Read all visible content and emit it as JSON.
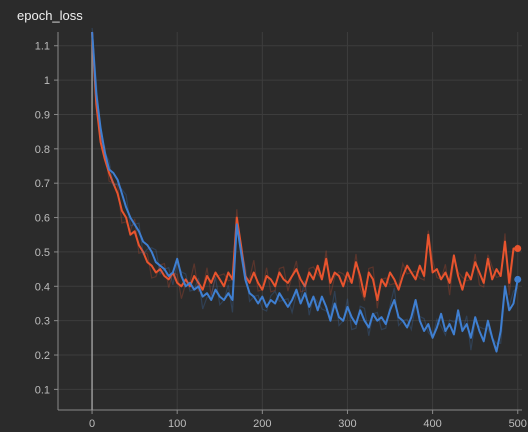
{
  "chart_data": {
    "type": "line",
    "title": "epoch_loss",
    "xlabel": "",
    "ylabel": "",
    "xlim": [
      -40,
      505
    ],
    "ylim": [
      0.04,
      1.14
    ],
    "x_ticks": [
      0,
      100,
      200,
      300,
      400,
      500
    ],
    "y_ticks": [
      0.1,
      0.2,
      0.3,
      0.4,
      0.5,
      0.6,
      0.7,
      0.8,
      0.9,
      1,
      1.1
    ],
    "grid": true,
    "series": [
      {
        "color": "#e8542e",
        "points": [
          [
            0,
            1.14
          ],
          [
            5,
            0.93
          ],
          [
            10,
            0.82
          ],
          [
            15,
            0.77
          ],
          [
            20,
            0.73
          ],
          [
            25,
            0.7
          ],
          [
            30,
            0.67
          ],
          [
            35,
            0.62
          ],
          [
            40,
            0.6
          ],
          [
            45,
            0.55
          ],
          [
            50,
            0.56
          ],
          [
            55,
            0.52
          ],
          [
            60,
            0.5
          ],
          [
            65,
            0.47
          ],
          [
            70,
            0.46
          ],
          [
            75,
            0.44
          ],
          [
            80,
            0.45
          ],
          [
            85,
            0.43
          ],
          [
            90,
            0.42
          ],
          [
            95,
            0.44
          ],
          [
            100,
            0.41
          ],
          [
            105,
            0.4
          ],
          [
            110,
            0.42
          ],
          [
            115,
            0.4
          ],
          [
            120,
            0.43
          ],
          [
            125,
            0.41
          ],
          [
            130,
            0.39
          ],
          [
            135,
            0.43
          ],
          [
            140,
            0.41
          ],
          [
            145,
            0.44
          ],
          [
            150,
            0.42
          ],
          [
            155,
            0.4
          ],
          [
            160,
            0.44
          ],
          [
            165,
            0.42
          ],
          [
            170,
            0.6
          ],
          [
            175,
            0.52
          ],
          [
            180,
            0.43
          ],
          [
            185,
            0.41
          ],
          [
            190,
            0.44
          ],
          [
            195,
            0.41
          ],
          [
            200,
            0.39
          ],
          [
            205,
            0.43
          ],
          [
            210,
            0.42
          ],
          [
            215,
            0.4
          ],
          [
            220,
            0.44
          ],
          [
            225,
            0.42
          ],
          [
            230,
            0.41
          ],
          [
            235,
            0.43
          ],
          [
            240,
            0.45
          ],
          [
            245,
            0.42
          ],
          [
            250,
            0.4
          ],
          [
            255,
            0.44
          ],
          [
            260,
            0.42
          ],
          [
            265,
            0.46
          ],
          [
            270,
            0.42
          ],
          [
            275,
            0.48
          ],
          [
            280,
            0.41
          ],
          [
            285,
            0.44
          ],
          [
            290,
            0.43
          ],
          [
            295,
            0.4
          ],
          [
            300,
            0.44
          ],
          [
            305,
            0.41
          ],
          [
            310,
            0.47
          ],
          [
            315,
            0.43
          ],
          [
            320,
            0.37
          ],
          [
            325,
            0.44
          ],
          [
            330,
            0.42
          ],
          [
            335,
            0.36
          ],
          [
            340,
            0.42
          ],
          [
            345,
            0.4
          ],
          [
            350,
            0.44
          ],
          [
            355,
            0.42
          ],
          [
            360,
            0.39
          ],
          [
            365,
            0.43
          ],
          [
            370,
            0.46
          ],
          [
            375,
            0.44
          ],
          [
            380,
            0.42
          ],
          [
            385,
            0.46
          ],
          [
            390,
            0.43
          ],
          [
            395,
            0.55
          ],
          [
            400,
            0.44
          ],
          [
            405,
            0.45
          ],
          [
            410,
            0.42
          ],
          [
            415,
            0.44
          ],
          [
            420,
            0.41
          ],
          [
            425,
            0.49
          ],
          [
            430,
            0.43
          ],
          [
            435,
            0.39
          ],
          [
            440,
            0.44
          ],
          [
            445,
            0.42
          ],
          [
            450,
            0.47
          ],
          [
            455,
            0.44
          ],
          [
            460,
            0.41
          ],
          [
            465,
            0.48
          ],
          [
            470,
            0.42
          ],
          [
            475,
            0.45
          ],
          [
            480,
            0.43
          ],
          [
            485,
            0.53
          ],
          [
            490,
            0.41
          ],
          [
            495,
            0.51
          ],
          [
            500,
            0.51
          ]
        ]
      },
      {
        "color": "#3f7fd1",
        "points": [
          [
            0,
            1.14
          ],
          [
            5,
            0.96
          ],
          [
            10,
            0.86
          ],
          [
            15,
            0.79
          ],
          [
            20,
            0.74
          ],
          [
            25,
            0.73
          ],
          [
            30,
            0.71
          ],
          [
            35,
            0.67
          ],
          [
            40,
            0.63
          ],
          [
            45,
            0.6
          ],
          [
            50,
            0.58
          ],
          [
            55,
            0.56
          ],
          [
            60,
            0.53
          ],
          [
            65,
            0.52
          ],
          [
            70,
            0.5
          ],
          [
            75,
            0.47
          ],
          [
            80,
            0.46
          ],
          [
            85,
            0.45
          ],
          [
            90,
            0.43
          ],
          [
            95,
            0.44
          ],
          [
            100,
            0.48
          ],
          [
            105,
            0.43
          ],
          [
            110,
            0.4
          ],
          [
            115,
            0.41
          ],
          [
            120,
            0.39
          ],
          [
            125,
            0.4
          ],
          [
            130,
            0.37
          ],
          [
            135,
            0.38
          ],
          [
            140,
            0.36
          ],
          [
            145,
            0.39
          ],
          [
            150,
            0.37
          ],
          [
            155,
            0.36
          ],
          [
            160,
            0.38
          ],
          [
            165,
            0.36
          ],
          [
            170,
            0.58
          ],
          [
            175,
            0.5
          ],
          [
            180,
            0.42
          ],
          [
            185,
            0.38
          ],
          [
            190,
            0.37
          ],
          [
            195,
            0.35
          ],
          [
            200,
            0.37
          ],
          [
            205,
            0.34
          ],
          [
            210,
            0.36
          ],
          [
            215,
            0.35
          ],
          [
            220,
            0.38
          ],
          [
            225,
            0.36
          ],
          [
            230,
            0.34
          ],
          [
            235,
            0.36
          ],
          [
            240,
            0.39
          ],
          [
            245,
            0.35
          ],
          [
            250,
            0.38
          ],
          [
            255,
            0.34
          ],
          [
            260,
            0.37
          ],
          [
            265,
            0.33
          ],
          [
            270,
            0.37
          ],
          [
            275,
            0.34
          ],
          [
            280,
            0.3
          ],
          [
            285,
            0.35
          ],
          [
            290,
            0.31
          ],
          [
            295,
            0.3
          ],
          [
            300,
            0.34
          ],
          [
            305,
            0.31
          ],
          [
            310,
            0.29
          ],
          [
            315,
            0.33
          ],
          [
            320,
            0.3
          ],
          [
            325,
            0.28
          ],
          [
            330,
            0.32
          ],
          [
            335,
            0.3
          ],
          [
            340,
            0.31
          ],
          [
            345,
            0.29
          ],
          [
            350,
            0.33
          ],
          [
            355,
            0.36
          ],
          [
            360,
            0.31
          ],
          [
            365,
            0.3
          ],
          [
            370,
            0.28
          ],
          [
            375,
            0.31
          ],
          [
            380,
            0.36
          ],
          [
            385,
            0.3
          ],
          [
            390,
            0.27
          ],
          [
            395,
            0.29
          ],
          [
            400,
            0.25
          ],
          [
            405,
            0.28
          ],
          [
            410,
            0.32
          ],
          [
            415,
            0.27
          ],
          [
            420,
            0.29
          ],
          [
            425,
            0.26
          ],
          [
            430,
            0.33
          ],
          [
            435,
            0.27
          ],
          [
            440,
            0.29
          ],
          [
            445,
            0.25
          ],
          [
            450,
            0.31
          ],
          [
            455,
            0.27
          ],
          [
            460,
            0.24
          ],
          [
            465,
            0.3
          ],
          [
            470,
            0.25
          ],
          [
            475,
            0.21
          ],
          [
            480,
            0.27
          ],
          [
            485,
            0.4
          ],
          [
            490,
            0.33
          ],
          [
            495,
            0.35
          ],
          [
            500,
            0.42
          ]
        ]
      }
    ]
  }
}
